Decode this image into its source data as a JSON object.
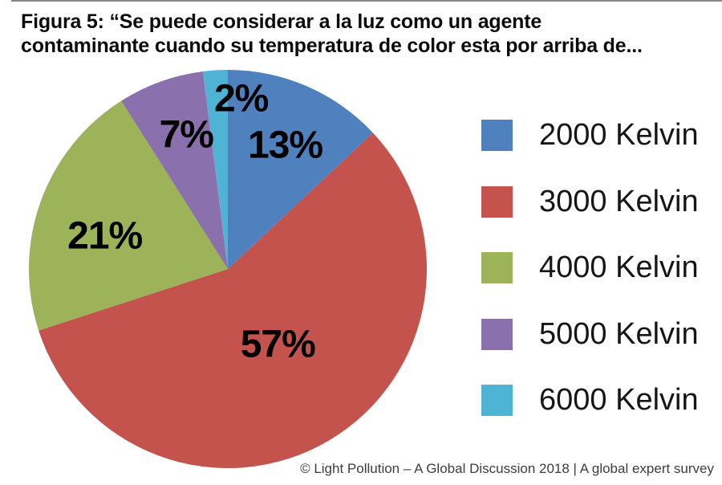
{
  "title": {
    "line1": "Figura 5: “Se puede considerar a la luz como un agente",
    "line2": "contaminante cuando su temperatura de color esta por arriba de..."
  },
  "footer": "© Light Pollution – A Global Discussion 2018 | A global expert survey",
  "chart_data": {
    "type": "pie",
    "title": "Figura 5: “Se puede considerar a la luz como un agente contaminante cuando su temperatura de color esta por arriba de...",
    "start_angle_deg": 0,
    "direction": "clockwise",
    "legend_position": "right",
    "slices": [
      {
        "label": "2000 Kelvin",
        "value": 13,
        "pct_label": "13%",
        "color": "#4E81BE",
        "label_angle_deg": 24.9,
        "label_r_frac": 0.685
      },
      {
        "label": "3000 Kelvin",
        "value": 57,
        "pct_label": "57%",
        "color": "#C4534E",
        "label_angle_deg": 146.5,
        "label_r_frac": 0.455
      },
      {
        "label": "4000 Kelvin",
        "value": 21,
        "pct_label": "21%",
        "color": "#9DB35A",
        "label_angle_deg": 285.0,
        "label_r_frac": 0.64
      },
      {
        "label": "5000 Kelvin",
        "value": 7,
        "pct_label": "7%",
        "color": "#8A70AD",
        "label_angle_deg": 342.8,
        "label_r_frac": 0.705
      },
      {
        "label": "6000 Kelvin",
        "value": 2,
        "pct_label": "2%",
        "color": "#4FB3D5",
        "label_angle_deg": 4.5,
        "label_r_frac": 0.857
      }
    ]
  }
}
